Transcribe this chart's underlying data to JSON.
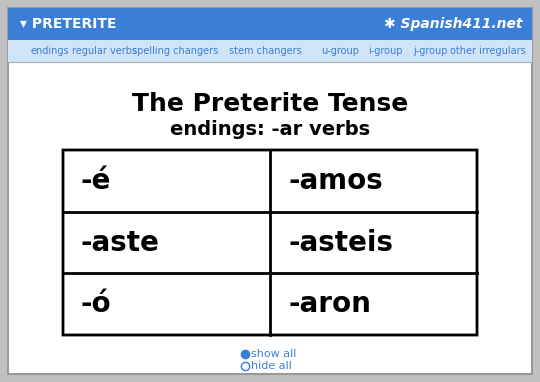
{
  "title": "The Preterite Tense",
  "subtitle": "endings: -ar verbs",
  "table_data": [
    [
      "-é",
      "-amos"
    ],
    [
      "-aste",
      "-asteis"
    ],
    [
      "-ó",
      "-aron"
    ]
  ],
  "header_bar_color": "#3a7fd5",
  "header_text": "▾ PRETERITE",
  "header_logo": "✱ Spanish411.net",
  "nav_bg_color": "#d0e4f7",
  "nav_items": [
    "endings",
    "regular verbs",
    "spelling changers",
    "stem changers",
    "u-group",
    "i-group",
    "j-group",
    "other irregulars"
  ],
  "nav_text_color": "#3a7fd5",
  "bg_color": "#ffffff",
  "outer_bg_color": "#c0c0c0",
  "title_fontsize": 18,
  "subtitle_fontsize": 14,
  "cell_fontsize": 20,
  "table_border_color": "#000000",
  "show_all_text": "show all",
  "hide_all_text": "hide all",
  "footer_text_color": "#3a7fd5"
}
